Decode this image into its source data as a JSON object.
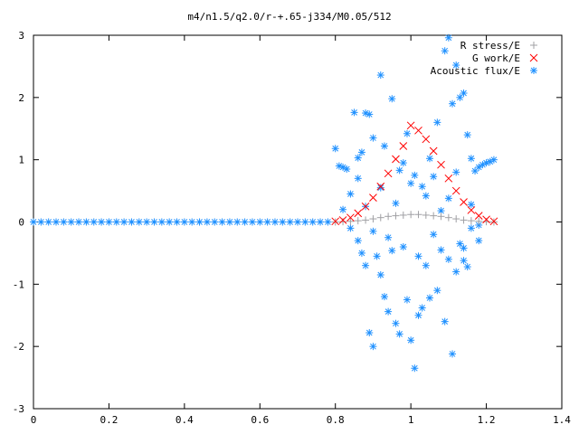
{
  "chart_data": {
    "type": "scatter",
    "title": "m4/n1.5/q2.0/r-+.65-j334/M0.05/512",
    "xlabel": "",
    "ylabel": "",
    "xlim": [
      0,
      1.4
    ],
    "ylim": [
      -3,
      3
    ],
    "x_ticks": [
      "0",
      "0.2",
      "0.4",
      "0.6",
      "0.8",
      "1",
      "1.2",
      "1.4"
    ],
    "y_ticks": [
      "3",
      "2",
      "1",
      "0",
      "-1",
      "-2",
      "-3"
    ],
    "grid": false,
    "legend_position": "top-right",
    "series": [
      {
        "name": "R stress/E",
        "color": "#a0a0a4",
        "marker": "plus",
        "points": [
          [
            0.8,
            0.0
          ],
          [
            0.82,
            0.005
          ],
          [
            0.84,
            0.01
          ],
          [
            0.86,
            0.02
          ],
          [
            0.88,
            0.03
          ],
          [
            0.9,
            0.05
          ],
          [
            0.92,
            0.07
          ],
          [
            0.94,
            0.09
          ],
          [
            0.96,
            0.1
          ],
          [
            0.98,
            0.11
          ],
          [
            1.0,
            0.12
          ],
          [
            1.02,
            0.12
          ],
          [
            1.04,
            0.11
          ],
          [
            1.06,
            0.1
          ],
          [
            1.08,
            0.09
          ],
          [
            1.1,
            0.07
          ],
          [
            1.12,
            0.05
          ],
          [
            1.14,
            0.03
          ],
          [
            1.16,
            0.02
          ],
          [
            1.18,
            0.01
          ],
          [
            1.2,
            0.005
          ],
          [
            1.22,
            0.0
          ]
        ]
      },
      {
        "name": "G work/E",
        "color": "#ff0000",
        "marker": "cross",
        "points": [
          [
            0.8,
            0.01
          ],
          [
            0.82,
            0.03
          ],
          [
            0.84,
            0.07
          ],
          [
            0.86,
            0.14
          ],
          [
            0.88,
            0.25
          ],
          [
            0.9,
            0.39
          ],
          [
            0.92,
            0.57
          ],
          [
            0.94,
            0.78
          ],
          [
            0.96,
            1.01
          ],
          [
            0.98,
            1.22
          ],
          [
            1.0,
            1.55
          ],
          [
            1.02,
            1.47
          ],
          [
            1.04,
            1.33
          ],
          [
            1.06,
            1.14
          ],
          [
            1.08,
            0.92
          ],
          [
            1.1,
            0.7
          ],
          [
            1.12,
            0.5
          ],
          [
            1.14,
            0.32
          ],
          [
            1.16,
            0.19
          ],
          [
            1.18,
            0.1
          ],
          [
            1.2,
            0.04
          ],
          [
            1.22,
            0.01
          ]
        ]
      },
      {
        "name": "Acoustic flux/E",
        "color": "#1e90ff",
        "marker": "star",
        "points": [
          [
            0.0,
            0
          ],
          [
            0.02,
            0
          ],
          [
            0.04,
            0
          ],
          [
            0.06,
            0
          ],
          [
            0.08,
            0
          ],
          [
            0.1,
            0
          ],
          [
            0.12,
            0
          ],
          [
            0.14,
            0
          ],
          [
            0.16,
            0
          ],
          [
            0.18,
            0
          ],
          [
            0.2,
            0
          ],
          [
            0.22,
            0
          ],
          [
            0.24,
            0
          ],
          [
            0.26,
            0
          ],
          [
            0.28,
            0
          ],
          [
            0.3,
            0
          ],
          [
            0.32,
            0
          ],
          [
            0.34,
            0
          ],
          [
            0.36,
            0
          ],
          [
            0.38,
            0
          ],
          [
            0.4,
            0
          ],
          [
            0.42,
            0
          ],
          [
            0.44,
            0
          ],
          [
            0.46,
            0
          ],
          [
            0.48,
            0
          ],
          [
            0.5,
            0
          ],
          [
            0.52,
            0
          ],
          [
            0.54,
            0
          ],
          [
            0.56,
            0
          ],
          [
            0.58,
            0
          ],
          [
            0.6,
            0
          ],
          [
            0.62,
            0
          ],
          [
            0.64,
            0
          ],
          [
            0.66,
            0
          ],
          [
            0.68,
            0
          ],
          [
            0.7,
            0
          ],
          [
            0.72,
            0
          ],
          [
            0.74,
            0
          ],
          [
            0.76,
            0
          ],
          [
            0.78,
            0
          ],
          [
            0.8,
            1.18
          ],
          [
            0.81,
            0.9
          ],
          [
            0.82,
            0.88
          ],
          [
            0.83,
            0.85
          ],
          [
            0.85,
            1.76
          ],
          [
            0.86,
            1.03
          ],
          [
            0.87,
            1.12
          ],
          [
            0.88,
            1.75
          ],
          [
            0.89,
            1.73
          ],
          [
            0.9,
            1.35
          ],
          [
            0.92,
            2.36
          ],
          [
            0.93,
            1.22
          ],
          [
            0.95,
            1.98
          ],
          [
            0.97,
            0.83
          ],
          [
            0.99,
            1.42
          ],
          [
            1.01,
            0.75
          ],
          [
            1.03,
            0.57
          ],
          [
            1.05,
            1.02
          ],
          [
            1.07,
            1.6
          ],
          [
            1.09,
            2.75
          ],
          [
            1.1,
            2.96
          ],
          [
            1.11,
            1.9
          ],
          [
            1.12,
            2.52
          ],
          [
            1.13,
            2.0
          ],
          [
            1.14,
            2.07
          ],
          [
            1.15,
            1.4
          ],
          [
            1.16,
            1.02
          ],
          [
            1.17,
            0.82
          ],
          [
            1.18,
            0.88
          ],
          [
            1.19,
            0.92
          ],
          [
            1.2,
            0.95
          ],
          [
            1.21,
            0.97
          ],
          [
            1.22,
            1.0
          ],
          [
            0.84,
            -0.1
          ],
          [
            0.86,
            -0.3
          ],
          [
            0.87,
            -0.5
          ],
          [
            0.88,
            -0.7
          ],
          [
            0.89,
            -1.78
          ],
          [
            0.9,
            -2.0
          ],
          [
            0.91,
            -0.55
          ],
          [
            0.92,
            -0.85
          ],
          [
            0.93,
            -1.2
          ],
          [
            0.94,
            -1.44
          ],
          [
            0.95,
            -0.46
          ],
          [
            0.96,
            -1.63
          ],
          [
            0.97,
            -1.8
          ],
          [
            0.98,
            -0.4
          ],
          [
            0.99,
            -1.25
          ],
          [
            1.0,
            -1.9
          ],
          [
            1.01,
            -2.35
          ],
          [
            1.02,
            -1.5
          ],
          [
            1.03,
            -1.38
          ],
          [
            1.04,
            -0.7
          ],
          [
            1.05,
            -1.22
          ],
          [
            1.06,
            -0.2
          ],
          [
            1.07,
            -1.1
          ],
          [
            1.08,
            -0.45
          ],
          [
            1.09,
            -1.6
          ],
          [
            1.1,
            -0.6
          ],
          [
            1.11,
            -2.12
          ],
          [
            1.12,
            -0.8
          ],
          [
            1.13,
            -0.35
          ],
          [
            1.14,
            -0.62
          ],
          [
            1.15,
            -0.72
          ],
          [
            1.16,
            -0.1
          ],
          [
            1.18,
            -0.05
          ],
          [
            0.82,
            0.2
          ],
          [
            0.84,
            0.45
          ],
          [
            0.86,
            0.7
          ],
          [
            0.88,
            0.25
          ],
          [
            0.9,
            -0.15
          ],
          [
            0.92,
            0.55
          ],
          [
            0.94,
            -0.25
          ],
          [
            0.96,
            0.3
          ],
          [
            0.98,
            0.95
          ],
          [
            1.0,
            0.62
          ],
          [
            1.02,
            -0.55
          ],
          [
            1.04,
            0.42
          ],
          [
            1.06,
            0.73
          ],
          [
            1.08,
            0.18
          ],
          [
            1.1,
            0.38
          ],
          [
            1.12,
            0.8
          ],
          [
            1.14,
            -0.42
          ],
          [
            1.16,
            0.28
          ],
          [
            1.18,
            -0.3
          ]
        ]
      }
    ]
  }
}
